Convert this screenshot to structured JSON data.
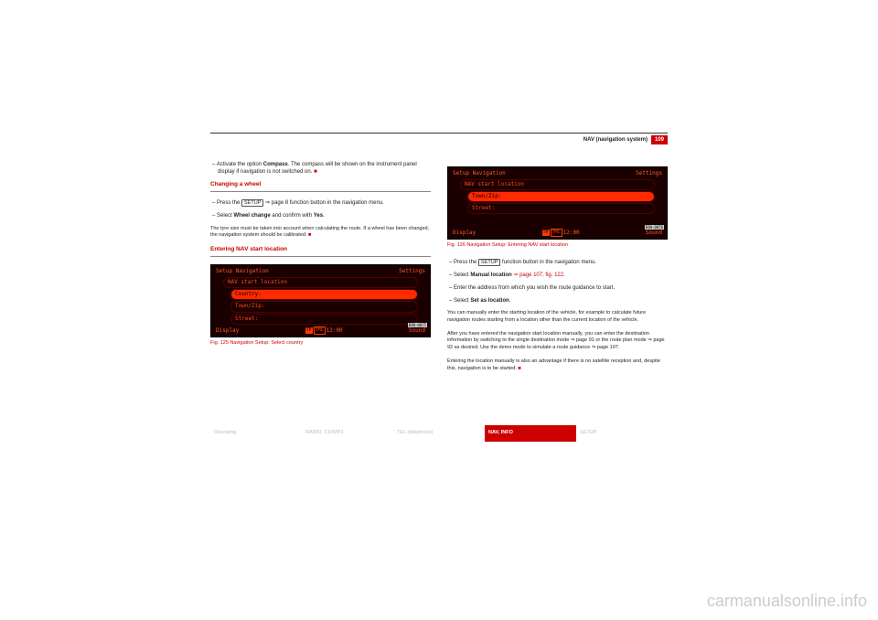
{
  "header": {
    "section": "NAV (navigation system)",
    "page": "109"
  },
  "left": {
    "p1a": "Activate the option ",
    "p1b": "Compass",
    "p1c": ". The compass will be shown on the instrument panel display if navigation is not switched on.",
    "h1": "Changing a wheel",
    "p2a": "Press the ",
    "setup": "SETUP",
    "p2b": " ⇒ page 8 function button in the navigation menu.",
    "p3a": "Select ",
    "p3b": "Wheel change",
    "p3c": " and confirm with ",
    "p3d": "Yes",
    "p3e": ".",
    "p4": "The tyre size must be taken into account when calculating the route. If a wheel has been changed, the navigation system should be calibrated.",
    "h2": "Entering NAV start location",
    "figcap": "Fig. 125   Navigation Setup: Select country",
    "screen": {
      "tl": "Setup Navigation",
      "tr": "Settings",
      "r1": "NAV start location",
      "r2": "Country:",
      "r3": "Town/Zip:",
      "r4": "Street:",
      "bl": "Display",
      "time": "12:00",
      "br": "Sound",
      "chip1": "TP",
      "chip2": "TMC",
      "b5": "B3N-0075"
    }
  },
  "right": {
    "figcap": "Fig. 126   Navigation Setup: Entering NAV start location",
    "screen": {
      "tl": "Setup Navigation",
      "tr": "Settings",
      "r1": "NAV start location",
      "r2": "Town/Zip:",
      "r3": "Street:",
      "bl": "Display",
      "time": "12:00",
      "br": "Sound",
      "chip1": "TP",
      "chip2": "TMC",
      "b5": "B3N-0076"
    },
    "p1a": "Press the ",
    "setup": "SETUP",
    "p1b": " function button in the navigation menu.",
    "p2a": "Select ",
    "p2b": "Manual location",
    "p2c": " ⇒ page 107, fig. 122",
    "p2d": ".",
    "p3": "Enter the address from which you wish the route guidance to start.",
    "p4a": "Select ",
    "p4b": "Set as location",
    "p4c": ".",
    "p5": "You can manually enter the starting location of the vehicle, for example to calculate future navigation routes starting from a location other than the current location of the vehicle.",
    "p6": "After you have entered the navigation start location manually, you can enter the destination information by switching to the single destination mode ⇒ page 91 or the route plan mode ⇒ page 92 as desired. Use the demo mode to simulate a route guidance ⇒ page 107.",
    "p7": "Entering the location manually is also an advantage if there is no satellite reception and, despite this, navigation is to be started."
  },
  "tabs": {
    "t1": "Operating",
    "t2": "RADIO, CD/MP3",
    "t3": "TEL (telephone)",
    "t4": "NAV, INFO",
    "t5": "SETUP"
  },
  "watermark": "carmanualsonline.info"
}
